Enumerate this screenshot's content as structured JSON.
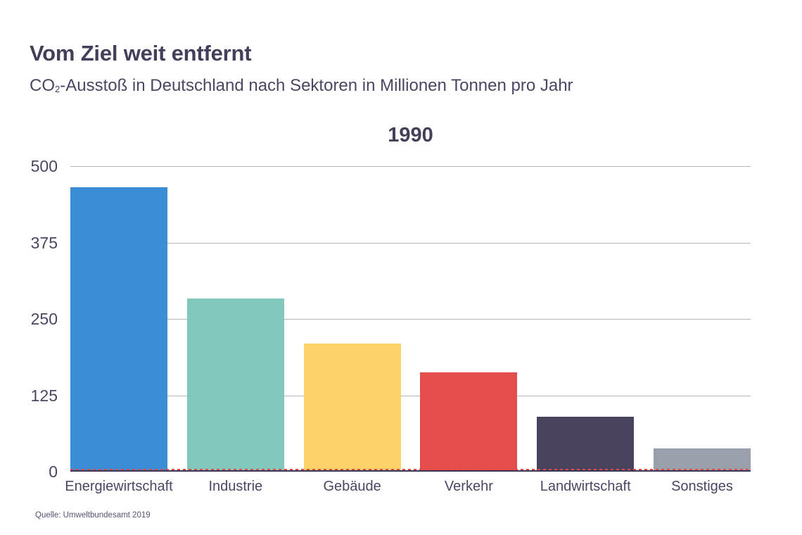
{
  "header": {
    "title": "Vom Ziel weit entfernt",
    "subtitle_co": "CO",
    "subtitle_sub": "2",
    "subtitle_rest": "-Ausstoß in Deutschland nach Sektoren in Millionen Tonnen pro Jahr"
  },
  "chart_data": {
    "type": "bar",
    "title": "1990",
    "categories": [
      "Energiewirtschaft",
      "Industrie",
      "Gebäude",
      "Verkehr",
      "Landwirtschaft",
      "Sonstiges"
    ],
    "values": [
      466,
      284,
      210,
      163,
      90,
      38
    ],
    "bar_colors": [
      "#3b8ed6",
      "#81c7bb",
      "#fdd169",
      "#e54c4c",
      "#4a4360",
      "#9aa0ab"
    ],
    "ylabel": "",
    "xlabel": "",
    "ylim": [
      0,
      500
    ],
    "yticks": [
      0,
      125,
      250,
      375,
      500
    ],
    "grid": true,
    "legend": "none",
    "colors": {
      "gridline": "#b5b5b5",
      "axis_line": "#3d3755",
      "zero_dashed_line": "#e0474b",
      "title_text": "#443e5a",
      "label_text": "#4c4662"
    }
  },
  "footer": {
    "source": "Quelle: Umweltbundesamt 2019"
  }
}
